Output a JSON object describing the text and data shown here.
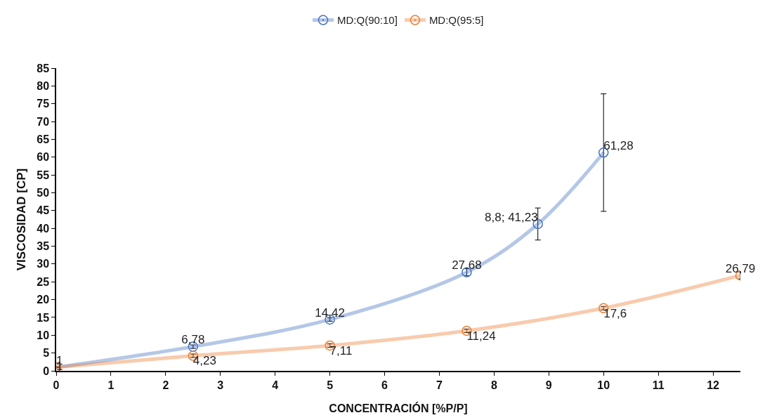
{
  "chart_data": {
    "type": "line",
    "xlabel": "CONCENTRACIÓN [%P/P]",
    "ylabel": "VISCOSIDAD [CP]",
    "xlim": [
      0,
      12.5
    ],
    "xticks": [
      0,
      1,
      2,
      3,
      4,
      5,
      6,
      7,
      8,
      9,
      10,
      11,
      12
    ],
    "ylim": [
      0,
      85
    ],
    "yticks": [
      0,
      5,
      10,
      15,
      20,
      25,
      30,
      35,
      40,
      45,
      50,
      55,
      60,
      65,
      70,
      75,
      80,
      85
    ],
    "grid": false,
    "legend": "top",
    "marker": "circle",
    "line_style": "solid",
    "series": [
      {
        "name": "MD:Q(90:10]",
        "color": "#4472c4",
        "x": [
          0,
          2.5,
          5,
          7.5,
          8.8,
          10
        ],
        "values": [
          1,
          6.78,
          14.42,
          27.68,
          41.23,
          61.28
        ],
        "errors": [
          null,
          0.5,
          0.5,
          1,
          4.5,
          16.5
        ],
        "value_labels": [
          "1",
          "6,78",
          "14,42",
          "27,68",
          "8,8; 41,23",
          "61,28"
        ]
      },
      {
        "name": "MD:Q(95:5]",
        "color": "#ed7d31",
        "x": [
          0,
          2.5,
          5,
          7.5,
          10,
          12.5
        ],
        "values": [
          1,
          4.23,
          7.11,
          11.24,
          17.6,
          26.79
        ],
        "errors": [
          null,
          0.5,
          0.5,
          0.5,
          0.5,
          1
        ],
        "value_labels": [
          "1",
          "4,23",
          "7,11",
          "11,24",
          "17,6",
          "26,79"
        ]
      }
    ]
  }
}
